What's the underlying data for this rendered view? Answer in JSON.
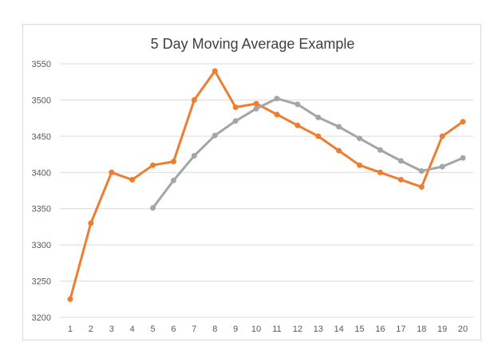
{
  "chart_data": {
    "type": "line",
    "title": "5 Day Moving Average Example",
    "xlabel": "",
    "ylabel": "",
    "x": [
      1,
      2,
      3,
      4,
      5,
      6,
      7,
      8,
      9,
      10,
      11,
      12,
      13,
      14,
      15,
      16,
      17,
      18,
      19,
      20
    ],
    "ylim": [
      3200,
      3550
    ],
    "yticks": [
      3200,
      3250,
      3300,
      3350,
      3400,
      3450,
      3500,
      3550
    ],
    "grid": "horizontal",
    "series": [
      {
        "color": "#ED7D31",
        "values": [
          3225,
          3330,
          3400,
          3390,
          3410,
          3415,
          3500,
          3540,
          3490,
          3495,
          3480,
          3465,
          3450,
          3430,
          3410,
          3400,
          3390,
          3380,
          3450,
          3470
        ]
      },
      {
        "color": "#A5A5A5",
        "values": [
          null,
          null,
          null,
          null,
          3351,
          3389,
          3423,
          3451,
          3471,
          3488,
          3502,
          3494,
          3476,
          3463,
          3447,
          3431,
          3416,
          3402,
          3408,
          3420
        ]
      }
    ],
    "gridline_color": "#D9D9D9"
  }
}
